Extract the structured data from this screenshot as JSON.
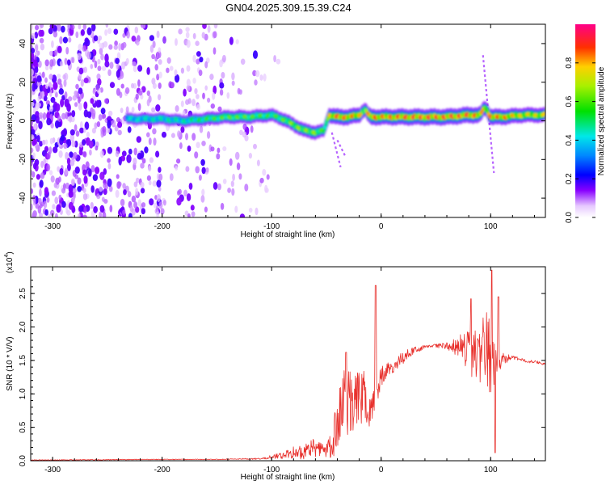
{
  "title": "GN04.2025.309.15.39.C24",
  "chart_data": [
    {
      "type": "heatmap",
      "ylabel": "Frequency (Hz)",
      "xlabel": "Height of straight line (km)",
      "xlim": [
        -320,
        150
      ],
      "ylim": [
        -50,
        50
      ],
      "xticks": [
        -300,
        -200,
        -100,
        0,
        100
      ],
      "yticks": [
        -40,
        -20,
        0,
        20,
        40
      ],
      "colorbar": {
        "label": "Normalized spectral amplitude",
        "range": [
          0,
          1
        ],
        "ticks": [
          "0.0",
          "0.2",
          "0.4",
          "0.6",
          "0.8"
        ],
        "tick_values": [
          0,
          0.2,
          0.4,
          0.6,
          0.8
        ]
      },
      "signal_track": {
        "x": [
          -232,
          -200,
          -180,
          -160,
          -140,
          -120,
          -100,
          -90,
          -80,
          -70,
          -60,
          -52,
          -48,
          -40,
          -30,
          -20,
          -15,
          -10,
          0,
          20,
          40,
          60,
          80,
          90,
          95,
          100,
          110,
          130,
          150
        ],
        "freq": [
          1,
          1,
          0,
          1,
          2,
          2,
          3,
          1,
          -2,
          -5,
          -6,
          -5,
          3,
          2,
          2,
          3,
          6,
          2,
          2,
          2,
          2,
          2,
          3,
          3,
          7,
          2,
          2,
          3,
          3
        ],
        "amplitude": [
          0.45,
          0.5,
          0.5,
          0.6,
          0.65,
          0.65,
          0.6,
          0.65,
          0.7,
          0.7,
          0.7,
          0.6,
          0.8,
          0.95,
          0.9,
          0.85,
          0.7,
          0.95,
          0.9,
          0.95,
          0.95,
          0.95,
          0.95,
          0.9,
          0.8,
          0.95,
          0.9,
          0.8,
          0.8
        ]
      },
      "noise_region": [
        -320,
        -110
      ]
    },
    {
      "type": "line",
      "ylabel": "SNR (10 * V/V)",
      "scale_label": "(x10",
      "scale_exp": "4",
      "xlabel": "Height of straight line (km)",
      "xlim": [
        -320,
        150
      ],
      "ylim": [
        0,
        2.9
      ],
      "xticks": [
        -300,
        -200,
        -100,
        0,
        100
      ],
      "yticks": [
        0,
        0.5,
        1,
        1.5,
        2,
        2.5
      ],
      "ytick_labels": [
        "0.0",
        "0.5",
        "1.0",
        "1.5",
        "2.0",
        "2.5"
      ],
      "color": "#e8302c",
      "series": [
        {
          "name": "SNR",
          "x": [
            -320,
            -250,
            -200,
            -150,
            -110,
            -90,
            -80,
            -70,
            -60,
            -50,
            -45,
            -40,
            -35,
            -30,
            -25,
            -20,
            -15,
            -10,
            -5,
            0,
            10,
            20,
            30,
            40,
            50,
            60,
            70,
            80,
            85,
            90,
            95,
            100,
            105,
            110,
            120,
            130,
            150
          ],
          "y": [
            0.01,
            0.015,
            0.02,
            0.02,
            0.03,
            0.08,
            0.12,
            0.15,
            0.2,
            0.15,
            0.25,
            0.55,
            0.8,
            0.85,
            0.8,
            0.95,
            1.0,
            0.85,
            1.0,
            1.25,
            1.4,
            1.55,
            1.65,
            1.7,
            1.72,
            1.72,
            1.7,
            1.7,
            1.6,
            1.65,
            1.7,
            1.55,
            1.5,
            1.52,
            1.55,
            1.5,
            1.45
          ],
          "spread": [
            0,
            0,
            0,
            0,
            0.01,
            0.05,
            0.1,
            0.12,
            0.15,
            0.12,
            0.2,
            0.45,
            0.6,
            0.55,
            0.45,
            0.45,
            0.45,
            0.35,
            0.3,
            0.15,
            0.12,
            0.1,
            0.05,
            0.03,
            0.03,
            0.05,
            0.15,
            0.35,
            0.45,
            0.5,
            0.55,
            0.65,
            0.4,
            0.1,
            0.03,
            0.02,
            0.02
          ],
          "spikes": [
            {
              "x": -5,
              "y": 2.62
            },
            {
              "x": -32,
              "y": 1.62
            },
            {
              "x": 82,
              "y": 2.42
            },
            {
              "x": 101,
              "y": 2.85
            },
            {
              "x": 104,
              "y": 0.12
            },
            {
              "x": 107,
              "y": 2.45
            }
          ]
        }
      ]
    }
  ]
}
